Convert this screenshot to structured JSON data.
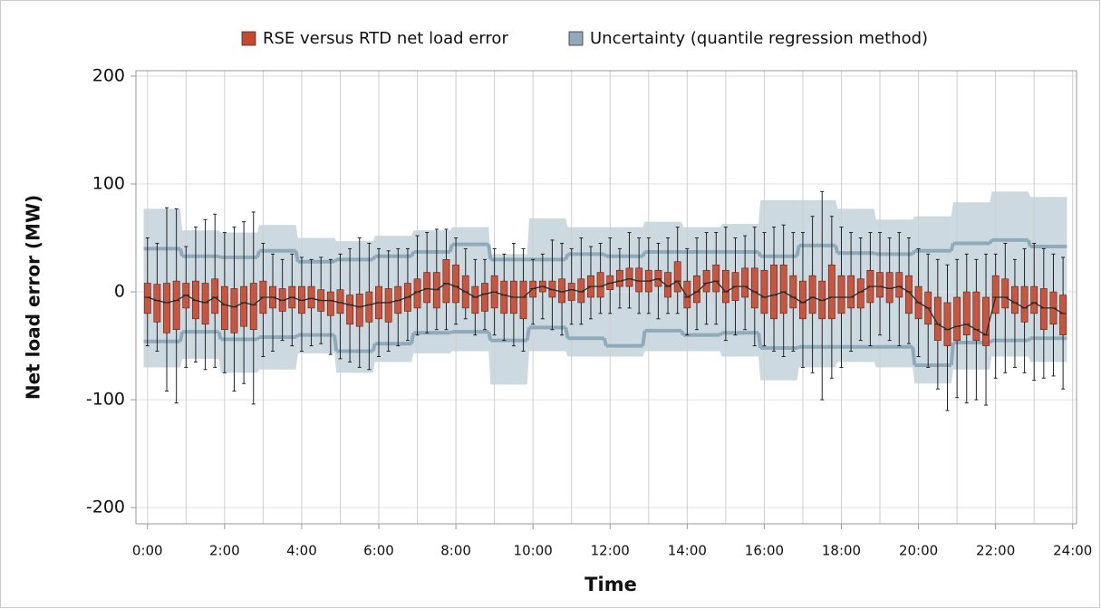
{
  "chart_data": {
    "type": "box",
    "xlabel": "Time",
    "ylabel": "Net load error (MW)",
    "xlim": [
      -0.3,
      24.1
    ],
    "ylim": [
      -215,
      205
    ],
    "xticks": [
      {
        "value": 0,
        "label": "0:00"
      },
      {
        "value": 2,
        "label": "2:00"
      },
      {
        "value": 4,
        "label": "4:00"
      },
      {
        "value": 6,
        "label": "6:00"
      },
      {
        "value": 8,
        "label": "8:00"
      },
      {
        "value": 10,
        "label": "10:00"
      },
      {
        "value": 12,
        "label": "12:00"
      },
      {
        "value": 14,
        "label": "14:00"
      },
      {
        "value": 16,
        "label": "16:00"
      },
      {
        "value": 18,
        "label": "18:00"
      },
      {
        "value": 20,
        "label": "20:00"
      },
      {
        "value": 22,
        "label": "22:00"
      },
      {
        "value": 24,
        "label": "24:00"
      }
    ],
    "minor_xticks": [
      1,
      3,
      5,
      7,
      9,
      11,
      13,
      15,
      17,
      19,
      21,
      23
    ],
    "yticks": [
      200,
      100,
      0,
      -100,
      -200
    ],
    "grid": true,
    "series": [
      {
        "name": "RSE versus RTD net load error",
        "color": "#c8472d",
        "x": [
          0,
          0.25,
          0.5,
          0.75,
          1,
          1.25,
          1.5,
          1.75,
          2,
          2.25,
          2.5,
          2.75,
          3,
          3.25,
          3.5,
          3.75,
          4,
          4.25,
          4.5,
          4.75,
          5,
          5.25,
          5.5,
          5.75,
          6,
          6.25,
          6.5,
          6.75,
          7,
          7.25,
          7.5,
          7.75,
          8,
          8.25,
          8.5,
          8.75,
          9,
          9.25,
          9.5,
          9.75,
          10,
          10.25,
          10.5,
          10.75,
          11,
          11.25,
          11.5,
          11.75,
          12,
          12.25,
          12.5,
          12.75,
          13,
          13.25,
          13.5,
          13.75,
          14,
          14.25,
          14.5,
          14.75,
          15,
          15.25,
          15.5,
          15.75,
          16,
          16.25,
          16.5,
          16.75,
          17,
          17.25,
          17.5,
          17.75,
          18,
          18.25,
          18.5,
          18.75,
          19,
          19.25,
          19.5,
          19.75,
          20,
          20.25,
          20.5,
          20.75,
          21,
          21.25,
          21.5,
          21.75,
          22,
          22.25,
          22.5,
          22.75,
          23,
          23.25,
          23.5,
          23.75
        ],
        "boxes": [
          [
            -50,
            -20,
            -5,
            8,
            50
          ],
          [
            -55,
            -28,
            -8,
            7,
            45
          ],
          [
            -92,
            -38,
            -10,
            8,
            78
          ],
          [
            -103,
            -35,
            -8,
            10,
            77
          ],
          [
            -70,
            -15,
            -3,
            8,
            42
          ],
          [
            -65,
            -25,
            -8,
            10,
            60
          ],
          [
            -72,
            -30,
            -10,
            8,
            67
          ],
          [
            -70,
            -20,
            -5,
            12,
            72
          ],
          [
            -75,
            -35,
            -12,
            5,
            55
          ],
          [
            -92,
            -38,
            -14,
            3,
            60
          ],
          [
            -85,
            -32,
            -10,
            5,
            65
          ],
          [
            -104,
            -35,
            -12,
            8,
            74
          ],
          [
            -60,
            -20,
            -5,
            10,
            45
          ],
          [
            -55,
            -15,
            -5,
            5,
            35
          ],
          [
            -45,
            -18,
            -8,
            3,
            30
          ],
          [
            -50,
            -15,
            -5,
            5,
            35
          ],
          [
            -55,
            -20,
            -8,
            5,
            32
          ],
          [
            -50,
            -15,
            -6,
            5,
            30
          ],
          [
            -48,
            -18,
            -8,
            2,
            32
          ],
          [
            -58,
            -22,
            -8,
            0,
            30
          ],
          [
            -62,
            -20,
            -10,
            2,
            35
          ],
          [
            -65,
            -30,
            -12,
            -3,
            40
          ],
          [
            -70,
            -32,
            -14,
            -2,
            50
          ],
          [
            -72,
            -28,
            -12,
            0,
            45
          ],
          [
            -60,
            -25,
            -10,
            5,
            40
          ],
          [
            -55,
            -28,
            -10,
            3,
            38
          ],
          [
            -50,
            -20,
            -8,
            5,
            40
          ],
          [
            -45,
            -18,
            -5,
            8,
            40
          ],
          [
            -40,
            -15,
            0,
            12,
            52
          ],
          [
            -38,
            -10,
            3,
            18,
            55
          ],
          [
            -35,
            -15,
            2,
            18,
            58
          ],
          [
            -35,
            -10,
            8,
            30,
            58
          ],
          [
            -30,
            -10,
            5,
            25,
            50
          ],
          [
            -25,
            -15,
            0,
            15,
            40
          ],
          [
            -40,
            -20,
            -5,
            5,
            30
          ],
          [
            -35,
            -18,
            -2,
            8,
            30
          ],
          [
            -40,
            -15,
            0,
            15,
            40
          ],
          [
            -45,
            -20,
            -3,
            10,
            35
          ],
          [
            -50,
            -20,
            -5,
            10,
            45
          ],
          [
            -55,
            -25,
            -5,
            10,
            40
          ],
          [
            -30,
            -5,
            3,
            10,
            30
          ],
          [
            -25,
            0,
            5,
            10,
            35
          ],
          [
            -35,
            -5,
            2,
            10,
            48
          ],
          [
            -40,
            -10,
            0,
            12,
            45
          ],
          [
            -30,
            -8,
            2,
            8,
            40
          ],
          [
            -30,
            -10,
            0,
            12,
            50
          ],
          [
            -25,
            -5,
            5,
            15,
            42
          ],
          [
            -20,
            -5,
            5,
            18,
            45
          ],
          [
            -20,
            2,
            8,
            15,
            50
          ],
          [
            -15,
            5,
            10,
            20,
            40
          ],
          [
            -15,
            5,
            12,
            22,
            55
          ],
          [
            -20,
            0,
            10,
            22,
            50
          ],
          [
            -20,
            0,
            10,
            20,
            50
          ],
          [
            -25,
            5,
            12,
            20,
            45
          ],
          [
            -20,
            -5,
            5,
            18,
            50
          ],
          [
            -20,
            0,
            10,
            28,
            60
          ],
          [
            -40,
            -15,
            -5,
            10,
            40
          ],
          [
            -35,
            -10,
            0,
            15,
            50
          ],
          [
            -30,
            0,
            8,
            20,
            55
          ],
          [
            -30,
            0,
            10,
            25,
            55
          ],
          [
            -45,
            -10,
            0,
            20,
            60
          ],
          [
            -40,
            -8,
            5,
            18,
            50
          ],
          [
            -35,
            -5,
            5,
            22,
            52
          ],
          [
            -50,
            -15,
            0,
            22,
            60
          ],
          [
            -50,
            -20,
            -5,
            20,
            55
          ],
          [
            -55,
            -25,
            -3,
            25,
            60
          ],
          [
            -60,
            -20,
            0,
            25,
            62
          ],
          [
            -55,
            -15,
            -5,
            15,
            55
          ],
          [
            -70,
            -25,
            -10,
            10,
            55
          ],
          [
            -75,
            -20,
            -5,
            15,
            70
          ],
          [
            -100,
            -25,
            -8,
            10,
            93
          ],
          [
            -80,
            -25,
            -5,
            25,
            70
          ],
          [
            -70,
            -20,
            -5,
            15,
            60
          ],
          [
            -55,
            -15,
            -5,
            15,
            55
          ],
          [
            -45,
            -15,
            0,
            12,
            50
          ],
          [
            -50,
            -10,
            5,
            20,
            55
          ],
          [
            -40,
            -5,
            5,
            18,
            55
          ],
          [
            -45,
            -10,
            3,
            18,
            50
          ],
          [
            -50,
            -5,
            5,
            18,
            55
          ],
          [
            -48,
            -20,
            0,
            15,
            50
          ],
          [
            -60,
            -25,
            -10,
            5,
            40
          ],
          [
            -70,
            -30,
            -15,
            0,
            35
          ],
          [
            -90,
            -45,
            -30,
            -5,
            30
          ],
          [
            -110,
            -50,
            -35,
            -10,
            25
          ],
          [
            -98,
            -45,
            -32,
            -5,
            30
          ],
          [
            -103,
            -40,
            -30,
            0,
            35
          ],
          [
            -100,
            -45,
            -35,
            0,
            30
          ],
          [
            -105,
            -50,
            -40,
            -5,
            35
          ],
          [
            -80,
            -20,
            -5,
            15,
            35
          ],
          [
            -75,
            -15,
            -5,
            12,
            45
          ],
          [
            -70,
            -20,
            -10,
            5,
            30
          ],
          [
            -75,
            -28,
            -15,
            5,
            40
          ],
          [
            -82,
            -20,
            -10,
            5,
            45
          ],
          [
            -80,
            -35,
            -15,
            3,
            40
          ],
          [
            -78,
            -30,
            -15,
            0,
            35
          ],
          [
            -90,
            -40,
            -20,
            -3,
            32
          ]
        ]
      },
      {
        "name": "Uncertainty (quantile regression method)",
        "color": "#8eaabb",
        "x": [
          0,
          1,
          2,
          3,
          4,
          5,
          6,
          7,
          8,
          9,
          10,
          11,
          12,
          13,
          14,
          15,
          16,
          17,
          18,
          19,
          20,
          21,
          22,
          23
        ],
        "outer_upper": [
          77,
          57,
          55,
          62,
          50,
          47,
          52,
          57,
          60,
          35,
          68,
          60,
          60,
          65,
          60,
          63,
          85,
          85,
          77,
          67,
          70,
          83,
          93,
          88
        ],
        "upper": [
          40,
          33,
          32,
          38,
          28,
          30,
          33,
          37,
          44,
          30,
          30,
          35,
          33,
          37,
          37,
          37,
          33,
          43,
          36,
          35,
          38,
          45,
          48,
          42
        ],
        "lower": [
          -46,
          -37,
          -44,
          -42,
          -40,
          -55,
          -48,
          -38,
          -37,
          -45,
          -33,
          -43,
          -50,
          -36,
          -40,
          -38,
          -52,
          -51,
          -51,
          -51,
          -68,
          -47,
          -45,
          -43
        ],
        "outer_lower": [
          -70,
          -62,
          -75,
          -72,
          -57,
          -75,
          -65,
          -57,
          -55,
          -86,
          -55,
          -60,
          -60,
          -55,
          -55,
          -60,
          -82,
          -70,
          -65,
          -70,
          -85,
          -72,
          -60,
          -65
        ]
      }
    ]
  }
}
